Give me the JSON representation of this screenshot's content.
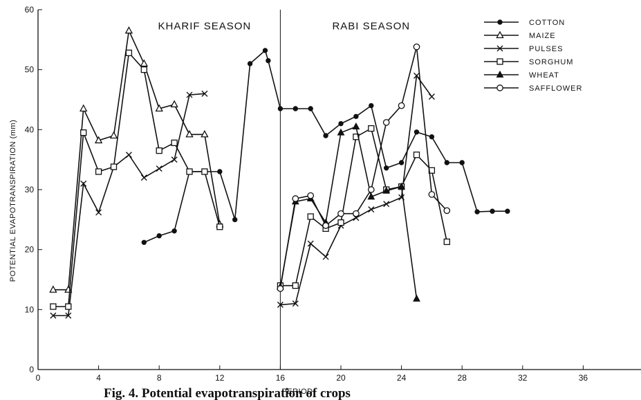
{
  "chart_data": {
    "type": "line",
    "title": "",
    "xlabel": "PERIOD",
    "ylabel": "POTENTIAL EVAPOTRANSPIRATION (mm)",
    "xlim": [
      0,
      40
    ],
    "ylim": [
      0,
      60
    ],
    "xticks": [
      0,
      4,
      8,
      12,
      16,
      20,
      24,
      28,
      32,
      36
    ],
    "yticks": [
      0,
      10,
      20,
      30,
      40,
      50,
      60
    ],
    "grid": false,
    "legend_position": "top-right",
    "annotations": [
      {
        "text": "KHARIF SEASON",
        "x": 11,
        "y": 57.3
      },
      {
        "text": "RABI SEASON",
        "x": 22,
        "y": 57.3
      }
    ],
    "divider_x": 16,
    "caption": "Fig. 4. Potential evapotranspiration of crops",
    "series": [
      {
        "name": "COTTON",
        "marker": "filled-circle",
        "x": [
          7,
          8,
          9,
          10,
          11,
          12,
          13,
          14,
          15,
          15.2,
          16,
          17,
          18,
          19,
          20,
          21,
          22,
          23,
          24,
          25,
          26,
          27,
          28,
          29,
          30,
          31
        ],
        "y": [
          21.2,
          22.3,
          23.1,
          33.0,
          33.0,
          33.0,
          25.0,
          51.0,
          53.2,
          51.5,
          43.5,
          43.5,
          43.5,
          39.0,
          41.0,
          42.2,
          44.0,
          33.6,
          34.5,
          39.6,
          38.8,
          34.5,
          34.5,
          26.3,
          26.4,
          26.4
        ]
      },
      {
        "name": "MAIZE",
        "marker": "open-triangle",
        "x": [
          1,
          2,
          3,
          4,
          5,
          6,
          7,
          8,
          9,
          10,
          11,
          12
        ],
        "y": [
          13.3,
          13.3,
          43.5,
          38.2,
          39.0,
          56.5,
          51.0,
          43.5,
          44.2,
          39.2,
          39.2,
          24.2
        ]
      },
      {
        "name": "PULSES",
        "marker": "cross",
        "x": [
          1,
          2,
          3,
          4,
          5,
          6,
          7,
          8,
          9,
          10,
          11,
          16,
          17,
          18,
          19,
          20,
          21,
          22,
          23,
          24,
          25,
          26
        ],
        "y": [
          9.0,
          9.0,
          31.0,
          26.2,
          33.8,
          35.8,
          32.0,
          33.5,
          35.0,
          45.8,
          46.0,
          10.8,
          11.0,
          21.0,
          18.8,
          24.0,
          25.3,
          26.7,
          27.6,
          28.7,
          49.0,
          45.5
        ]
      },
      {
        "name": "SORGHUM",
        "marker": "open-square",
        "x": [
          1,
          2,
          3,
          4,
          5,
          6,
          7,
          8,
          9,
          10,
          11,
          12,
          16,
          17,
          18,
          19,
          20,
          21,
          22,
          23,
          24,
          25,
          26,
          27
        ],
        "y": [
          10.5,
          10.5,
          39.5,
          33.0,
          33.8,
          52.8,
          50.0,
          36.5,
          37.8,
          33.0,
          33.0,
          23.8,
          14.0,
          14.0,
          25.5,
          23.5,
          24.5,
          38.8,
          40.2,
          30.0,
          30.5,
          35.8,
          33.2,
          21.3
        ]
      },
      {
        "name": "WHEAT",
        "marker": "filled-triangle",
        "x": [
          16,
          17,
          18,
          19,
          20,
          21,
          22,
          23,
          24,
          25
        ],
        "y": [
          13.8,
          28.0,
          28.5,
          24.5,
          39.5,
          40.5,
          28.8,
          29.8,
          30.5,
          11.8
        ]
      },
      {
        "name": "SAFFLOWER",
        "marker": "open-circle",
        "x": [
          16,
          17,
          18,
          19,
          20,
          21,
          22,
          23,
          24,
          25,
          26,
          27
        ],
        "y": [
          13.5,
          28.5,
          29.0,
          24.0,
          26.0,
          26.0,
          30.0,
          41.2,
          44.0,
          53.8,
          29.2,
          26.5
        ]
      }
    ]
  }
}
